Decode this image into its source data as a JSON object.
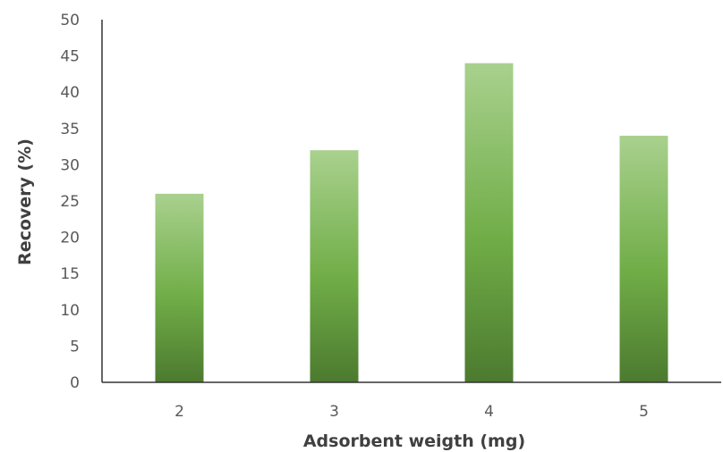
{
  "chart_data": {
    "type": "bar",
    "title": "",
    "xlabel": "Adsorbent weigth (mg)",
    "ylabel": "Recovery (%)",
    "categories": [
      "2",
      "3",
      "4",
      "5"
    ],
    "values": [
      26,
      32,
      44,
      34
    ],
    "ylim": [
      0,
      50
    ],
    "yticks": [
      "0",
      "5",
      "10",
      "15",
      "20",
      "25",
      "30",
      "35",
      "40",
      "45",
      "50"
    ],
    "grid": false,
    "legend": "none",
    "colors": {
      "bar_top": "#a9d18e",
      "bar_mid": "#70ad47",
      "bar_bottom": "#4c7a2f",
      "axis": "#333333"
    }
  }
}
